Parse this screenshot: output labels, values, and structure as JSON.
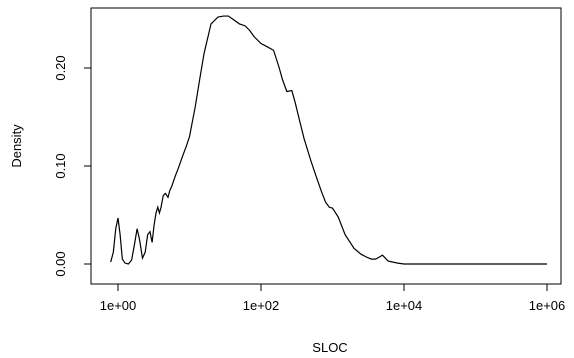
{
  "chart_data": {
    "type": "line",
    "title": "",
    "xlabel": "SLOC",
    "ylabel": "Density",
    "x_scale": "log10",
    "xlim": [
      0.6,
      1000000
    ],
    "ylim": [
      0.0,
      0.26
    ],
    "grid": false,
    "legend": "none",
    "x_ticks": [
      {
        "value": 1,
        "label": "1e+00"
      },
      {
        "value": 100,
        "label": "1e+02"
      },
      {
        "value": 10000,
        "label": "1e+04"
      },
      {
        "value": 1000000,
        "label": "1e+06"
      }
    ],
    "y_ticks": [
      {
        "value": 0.0,
        "label": "0.00"
      },
      {
        "value": 0.1,
        "label": "0.10"
      },
      {
        "value": 0.2,
        "label": "0.20"
      }
    ],
    "series": [
      {
        "color": "#000000",
        "x": [
          0.79,
          0.86,
          0.93,
          1.0,
          1.07,
          1.15,
          1.25,
          1.4,
          1.55,
          1.7,
          1.85,
          2.0,
          2.2,
          2.4,
          2.6,
          2.8,
          3.0,
          3.2,
          3.4,
          3.6,
          3.8,
          4.0,
          4.3,
          4.6,
          5.0,
          5.3,
          5.7,
          6.0,
          6.5,
          7.0,
          8.0,
          9.0,
          10.0,
          12.0,
          14.0,
          16.0,
          20.0,
          25.0,
          30.0,
          35.0,
          40.0,
          50.0,
          60.0,
          70.0,
          80.0,
          100.0,
          120.0,
          150.0,
          180.0,
          200.0,
          230.0,
          270.0,
          300.0,
          350.0,
          400.0,
          500.0,
          600.0,
          700.0,
          800.0,
          900.0,
          1000.0,
          1200.0,
          1500.0,
          2000.0,
          2500.0,
          3000.0,
          3500.0,
          4000.0,
          4500.0,
          5000.0,
          6000.0,
          8000.0,
          10000.0,
          20000.0,
          50000.0,
          100000.0,
          1000000.0
        ],
        "y": [
          0.002,
          0.012,
          0.036,
          0.047,
          0.03,
          0.005,
          0.001,
          0.0,
          0.004,
          0.02,
          0.036,
          0.025,
          0.006,
          0.012,
          0.03,
          0.033,
          0.022,
          0.04,
          0.052,
          0.058,
          0.052,
          0.058,
          0.07,
          0.072,
          0.068,
          0.075,
          0.08,
          0.085,
          0.092,
          0.098,
          0.11,
          0.12,
          0.13,
          0.16,
          0.19,
          0.215,
          0.245,
          0.252,
          0.253,
          0.253,
          0.25,
          0.245,
          0.243,
          0.238,
          0.232,
          0.225,
          0.222,
          0.218,
          0.2,
          0.188,
          0.176,
          0.177,
          0.165,
          0.145,
          0.128,
          0.105,
          0.088,
          0.074,
          0.063,
          0.058,
          0.057,
          0.048,
          0.03,
          0.016,
          0.01,
          0.007,
          0.005,
          0.005,
          0.007,
          0.009,
          0.003,
          0.001,
          0.0,
          0.0,
          0.0,
          0.0,
          0.0
        ]
      }
    ]
  }
}
